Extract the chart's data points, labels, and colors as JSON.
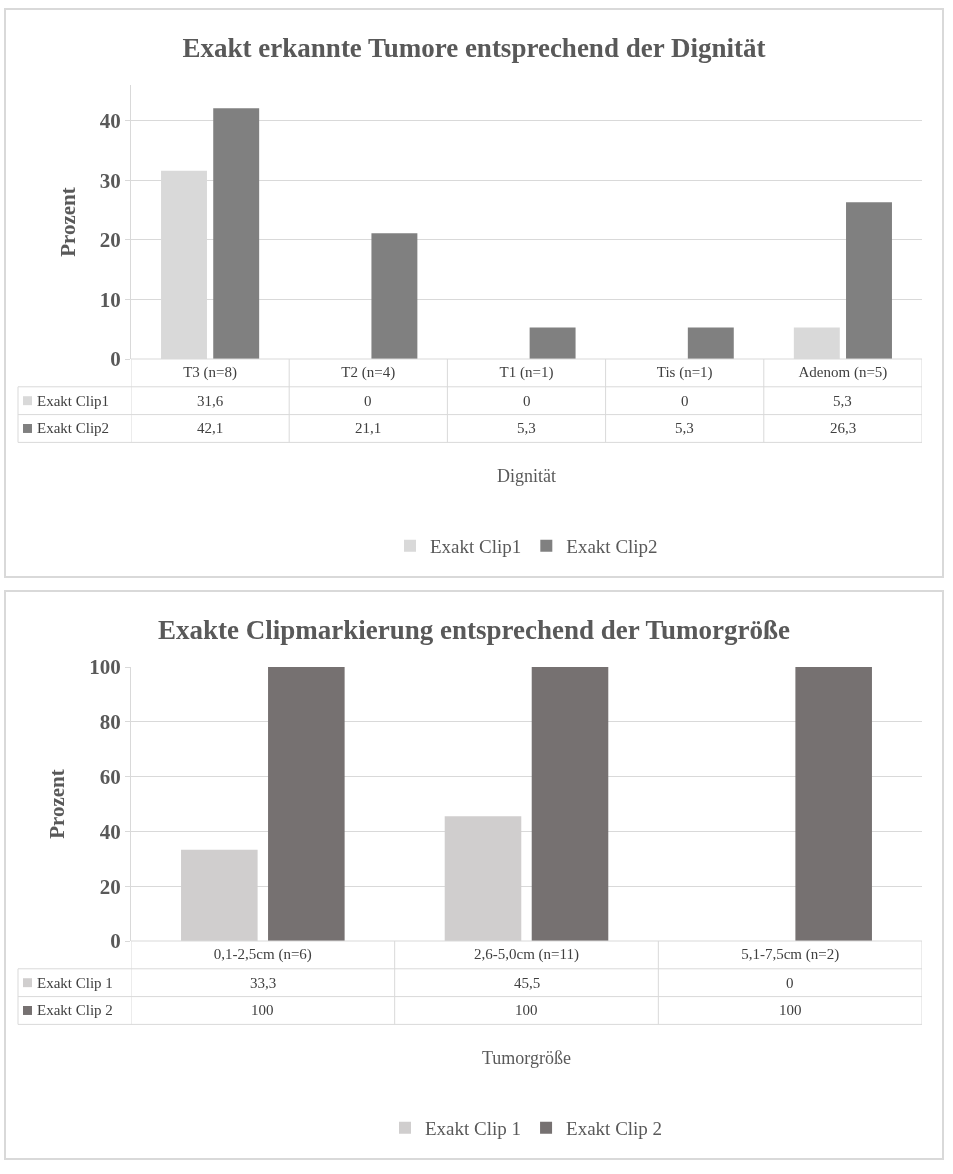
{
  "chart_data": [
    {
      "type": "bar",
      "title": "Exakt erkannte Tumore entsprechend der Dignität",
      "xlabel": "Dignität",
      "ylabel": "Prozent",
      "categories": [
        "T3 (n=8)",
        "T2 (n=4)",
        "T1 (n=1)",
        "Tis (n=1)",
        "Adenom (n=5)"
      ],
      "series": [
        {
          "name": "Exakt Clip1",
          "color": "#d9d9d9",
          "values": [
            31.6,
            0,
            0,
            0,
            5.3
          ],
          "value_labels": [
            "31,6",
            "0",
            "0",
            "0",
            "5,3"
          ]
        },
        {
          "name": "Exakt Clip2",
          "color": "#808080",
          "values": [
            42.1,
            21.1,
            5.3,
            5.3,
            26.3
          ],
          "value_labels": [
            "42,1",
            "21,1",
            "5,3",
            "5,3",
            "26,3"
          ]
        }
      ],
      "ylim": [
        0,
        46
      ],
      "yticks": [
        0,
        10,
        20,
        30,
        40
      ],
      "grid": "y",
      "legend": "bottom"
    },
    {
      "type": "bar",
      "title": "Exakte Clipmarkierung entsprechend der Tumorgröße",
      "xlabel": "Tumorgröße",
      "ylabel": "Prozent",
      "categories": [
        "0,1-2,5cm (n=6)",
        "2,6-5,0cm (n=11)",
        "5,1-7,5cm (n=2)"
      ],
      "series": [
        {
          "name": "Exakt Clip 1",
          "color": "#d0cece",
          "values": [
            33.3,
            45.5,
            0
          ],
          "value_labels": [
            "33,3",
            "45,5",
            "0"
          ]
        },
        {
          "name": "Exakt Clip 2",
          "color": "#767171",
          "values": [
            100,
            100,
            100
          ],
          "value_labels": [
            "100",
            "100",
            "100"
          ]
        }
      ],
      "ylim": [
        0,
        100
      ],
      "yticks": [
        0,
        20,
        40,
        60,
        80,
        100
      ],
      "grid": "y",
      "legend": "bottom"
    }
  ]
}
